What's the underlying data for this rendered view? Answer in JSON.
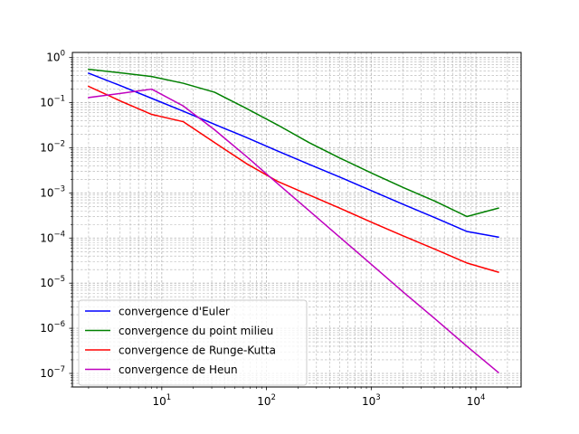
{
  "chart_data": {
    "type": "line",
    "title": "",
    "xlabel": "",
    "ylabel": "",
    "xscale": "log",
    "yscale": "log",
    "xlim": [
      1.4,
      27000
    ],
    "ylim": [
      5e-08,
      1.3
    ],
    "grid": "both-major-minor-dashed",
    "legend_position": "lower-left",
    "x_ticks": [
      {
        "value": 10,
        "base": "10",
        "exp": "1"
      },
      {
        "value": 100,
        "base": "10",
        "exp": "2"
      },
      {
        "value": 1000,
        "base": "10",
        "exp": "3"
      },
      {
        "value": 10000,
        "base": "10",
        "exp": "4"
      }
    ],
    "y_ticks": [
      {
        "value": 1e-07,
        "base": "10",
        "exp": "−7"
      },
      {
        "value": 1e-06,
        "base": "10",
        "exp": "−6"
      },
      {
        "value": 1e-05,
        "base": "10",
        "exp": "−5"
      },
      {
        "value": 0.0001,
        "base": "10",
        "exp": "−4"
      },
      {
        "value": 0.001,
        "base": "10",
        "exp": "−3"
      },
      {
        "value": 0.01,
        "base": "10",
        "exp": "−2"
      },
      {
        "value": 0.1,
        "base": "10",
        "exp": "−1"
      },
      {
        "value": 1,
        "base": "10",
        "exp": "0"
      }
    ],
    "x": [
      2,
      4,
      8,
      16,
      32,
      64,
      128,
      256,
      512,
      1024,
      2048,
      4096,
      8192,
      16384
    ],
    "series": [
      {
        "name": "convergence d'Euler",
        "color": "#0000ff",
        "values": [
          0.45,
          0.24,
          0.125,
          0.065,
          0.033,
          0.017,
          0.0085,
          0.0043,
          0.0022,
          0.0011,
          0.00055,
          0.00028,
          0.00014,
          0.000105
        ]
      },
      {
        "name": "convergence du point milieu",
        "color": "#008000",
        "values": [
          0.55,
          0.46,
          0.38,
          0.27,
          0.17,
          0.075,
          0.032,
          0.013,
          0.0058,
          0.0027,
          0.0013,
          0.00065,
          0.0003,
          0.00046
        ]
      },
      {
        "name": "convergence de Runge-Kutta",
        "color": "#ff0000",
        "values": [
          0.23,
          0.11,
          0.055,
          0.038,
          0.013,
          0.0045,
          0.0018,
          0.0009,
          0.00045,
          0.00022,
          0.00011,
          5.6e-05,
          2.8e-05,
          1.75e-05
        ]
      },
      {
        "name": "convergence de Heun",
        "color": "#bf00bf",
        "values": [
          0.13,
          0.16,
          0.2,
          0.085,
          0.025,
          0.0065,
          0.0016,
          0.0004,
          0.0001,
          2.5e-05,
          6.2e-06,
          1.6e-06,
          4e-07,
          1.05e-07
        ]
      }
    ]
  }
}
